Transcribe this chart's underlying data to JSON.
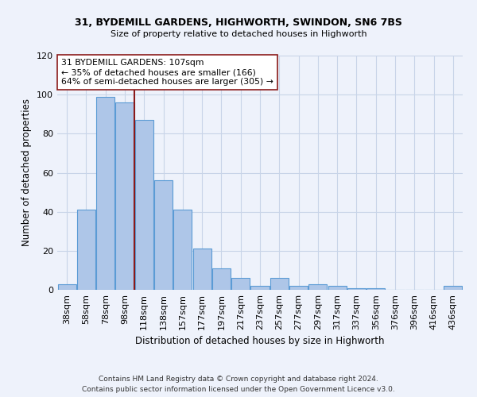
{
  "title1": "31, BYDEMILL GARDENS, HIGHWORTH, SWINDON, SN6 7BS",
  "title2": "Size of property relative to detached houses in Highworth",
  "xlabel": "Distribution of detached houses by size in Highworth",
  "ylabel": "Number of detached properties",
  "footnote1": "Contains HM Land Registry data © Crown copyright and database right 2024.",
  "footnote2": "Contains public sector information licensed under the Open Government Licence v3.0.",
  "annotation_title": "31 BYDEMILL GARDENS: 107sqm",
  "annotation_line1": "← 35% of detached houses are smaller (166)",
  "annotation_line2": "64% of semi-detached houses are larger (305) →",
  "bar_categories": [
    "38sqm",
    "58sqm",
    "78sqm",
    "98sqm",
    "118sqm",
    "138sqm",
    "157sqm",
    "177sqm",
    "197sqm",
    "217sqm",
    "237sqm",
    "257sqm",
    "277sqm",
    "297sqm",
    "317sqm",
    "337sqm",
    "356sqm",
    "376sqm",
    "396sqm",
    "416sqm",
    "436sqm"
  ],
  "bar_values": [
    3,
    41,
    99,
    96,
    87,
    56,
    41,
    21,
    11,
    6,
    2,
    6,
    2,
    3,
    2,
    1,
    1,
    0,
    0,
    0,
    2
  ],
  "bar_color": "#aec6e8",
  "bar_edge_color": "#5b9bd5",
  "vline_color": "#8b1a1a",
  "vline_x": 3.5,
  "annotation_box_color": "#ffffff",
  "annotation_box_edge": "#8b1a1a",
  "bg_color": "#eef2fb",
  "grid_color": "#c8d4e8",
  "ylim": [
    0,
    120
  ],
  "yticks": [
    0,
    20,
    40,
    60,
    80,
    100,
    120
  ]
}
